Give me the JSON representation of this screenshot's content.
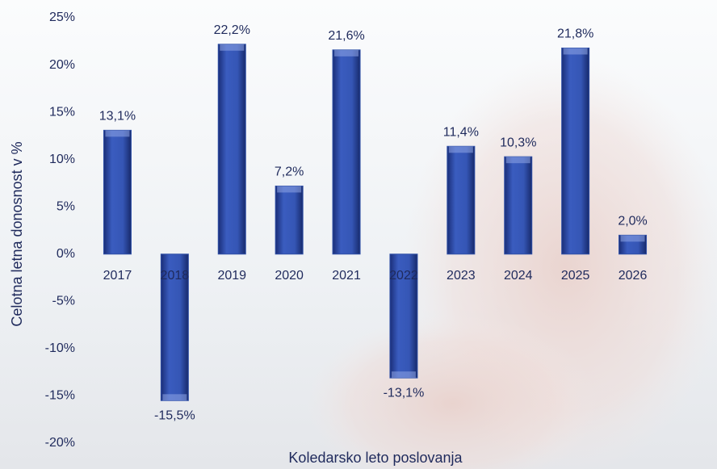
{
  "chart_data": {
    "type": "bar",
    "x_label": "Koledarsko leto poslovanja",
    "y_label": "Celotna letna donosnost v  %",
    "categories": [
      "2017",
      "2018",
      "2019",
      "2020",
      "2021",
      "2022",
      "2023",
      "2024",
      "2025",
      "2026"
    ],
    "values": [
      13.1,
      -15.5,
      22.2,
      7.2,
      21.6,
      -13.1,
      11.4,
      10.3,
      21.8,
      2.0
    ],
    "value_labels": [
      "13,1%",
      "-15,5%",
      "22,2%",
      "7,2%",
      "21,6%",
      "-13,1%",
      "11,4%",
      "10,3%",
      "21,8%",
      "2,0%"
    ],
    "color": "#2f4fa6",
    "ylim": [
      -20,
      25
    ],
    "yticks": [
      {
        "value": -20,
        "label": "-20%"
      },
      {
        "value": -15,
        "label": "-15%"
      },
      {
        "value": -10,
        "label": "-10%"
      },
      {
        "value": -5,
        "label": "-5%"
      },
      {
        "value": 0,
        "label": "0%"
      },
      {
        "value": 5,
        "label": "5%"
      },
      {
        "value": 10,
        "label": "10%"
      },
      {
        "value": 15,
        "label": "15%"
      },
      {
        "value": 20,
        "label": "20%"
      },
      {
        "value": 25,
        "label": "25%"
      }
    ],
    "grid": false
  }
}
